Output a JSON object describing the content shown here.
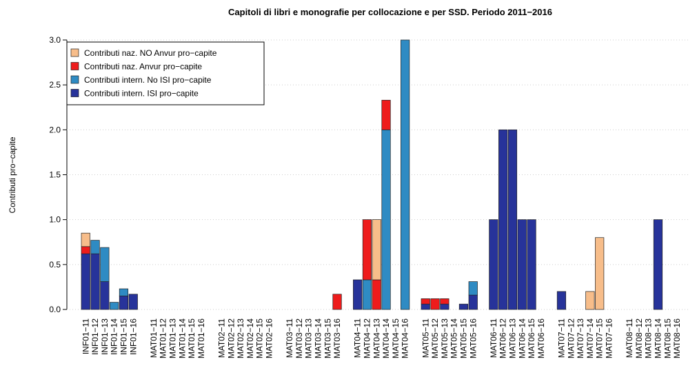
{
  "chart_data": {
    "type": "bar",
    "stacked": true,
    "title": "Capitoli di libri e monografie per collocazione e per SSD.  Periodo 2011−2016",
    "ylabel": "Contributi pro−capite",
    "categories": [
      "INF01−11",
      "INF01−12",
      "INF01−13",
      "INF01−14",
      "INF01−15",
      "INF01−16",
      "MAT01−11",
      "MAT01−12",
      "MAT01−13",
      "MAT01−14",
      "MAT01−15",
      "MAT01−16",
      "MAT02−11",
      "MAT02−12",
      "MAT02−13",
      "MAT02−14",
      "MAT02−15",
      "MAT02−16",
      "MAT03−11",
      "MAT03−12",
      "MAT03−13",
      "MAT03−14",
      "MAT03−15",
      "MAT03−16",
      "MAT04−11",
      "MAT04−12",
      "MAT04−13",
      "MAT04−14",
      "MAT04−15",
      "MAT04−16",
      "MAT05−11",
      "MAT05−12",
      "MAT05−13",
      "MAT05−14",
      "MAT05−15",
      "MAT05−16",
      "MAT06−11",
      "MAT06−12",
      "MAT06−13",
      "MAT06−14",
      "MAT06−15",
      "MAT06−16",
      "MAT07−11",
      "MAT07−12",
      "MAT07−13",
      "MAT07−14",
      "MAT07−15",
      "MAT07−16",
      "MAT08−11",
      "MAT08−12",
      "MAT08−13",
      "MAT08−14",
      "MAT08−15",
      "MAT08−16"
    ],
    "series": [
      {
        "name": "Contributi intern. ISI pro−capite",
        "color": "#27339a",
        "values": [
          0.62,
          0.62,
          0.31,
          0,
          0.15,
          0.17,
          0,
          0,
          0,
          0,
          0,
          0,
          0,
          0,
          0,
          0,
          0,
          0,
          0,
          0,
          0,
          0,
          0,
          0,
          0.33,
          0,
          0,
          0,
          0,
          0,
          0.06,
          0,
          0.06,
          0,
          0.06,
          0.16,
          1,
          2,
          2,
          1,
          1,
          0,
          0.2,
          0,
          0,
          0,
          0,
          0,
          0,
          0,
          0,
          1,
          0,
          0
        ]
      },
      {
        "name": "Contributi intern. No ISI pro−capite",
        "color": "#2f8bc3",
        "values": [
          0,
          0.15,
          0.38,
          0.08,
          0.08,
          0,
          0,
          0,
          0,
          0,
          0,
          0,
          0,
          0,
          0,
          0,
          0,
          0,
          0,
          0,
          0,
          0,
          0,
          0,
          0,
          0.33,
          0,
          2,
          0,
          3,
          0,
          0,
          0,
          0,
          0,
          0.15,
          0,
          0,
          0,
          0,
          0,
          0,
          0,
          0,
          0,
          0,
          0,
          0,
          0,
          0,
          0,
          0,
          0,
          0
        ]
      },
      {
        "name": "Contributi naz. Anvur pro−capite",
        "color": "#ee1c1c",
        "values": [
          0.08,
          0,
          0,
          0,
          0,
          0,
          0,
          0,
          0,
          0,
          0,
          0,
          0,
          0,
          0,
          0,
          0,
          0,
          0,
          0,
          0,
          0,
          0,
          0.17,
          0,
          0.67,
          0.33,
          0.33,
          0,
          0,
          0.06,
          0.12,
          0.06,
          0,
          0,
          0,
          0,
          0,
          0,
          0,
          0,
          0,
          0,
          0,
          0,
          0,
          0,
          0,
          0,
          0,
          0,
          0,
          0,
          0
        ]
      },
      {
        "name": "Contributi naz. NO Anvur pro−capite",
        "color": "#f7bd8a",
        "values": [
          0.15,
          0,
          0,
          0,
          0,
          0,
          0,
          0,
          0,
          0,
          0,
          0,
          0,
          0,
          0,
          0,
          0,
          0,
          0,
          0,
          0,
          0,
          0,
          0,
          0,
          0,
          0.67,
          0,
          0,
          0,
          0,
          0,
          0,
          0,
          0,
          0,
          0,
          0,
          0,
          0,
          0,
          0,
          0,
          0,
          0,
          0.2,
          0.8,
          0,
          0,
          0,
          0,
          0,
          0,
          0
        ]
      }
    ],
    "ylim": [
      0,
      3
    ],
    "yticks": [
      {
        "value": 0,
        "label": "0.0"
      },
      0.5,
      {
        "value": 1,
        "label": "1.0"
      },
      1.5,
      {
        "value": 2,
        "label": "2.0"
      },
      2.5,
      {
        "value": 3,
        "label": "3.0"
      }
    ],
    "grid": true,
    "legend": "top-left"
  }
}
